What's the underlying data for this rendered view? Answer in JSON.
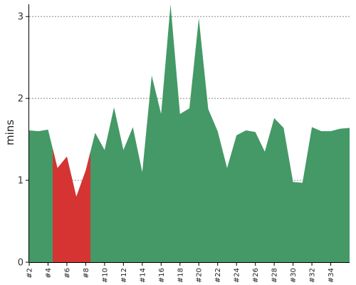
{
  "chart_data": {
    "type": "area",
    "ylabel": "mins",
    "xlabel": "",
    "ylim": [
      0,
      3.15
    ],
    "yticks": [
      0,
      1,
      2,
      3
    ],
    "grid": "horizontal-dashed",
    "legend": "none",
    "x_tick_labels": [
      "#2",
      "#4",
      "#6",
      "#8",
      "#10",
      "#12",
      "#14",
      "#16",
      "#18",
      "#20",
      "#22",
      "#24",
      "#26",
      "#28",
      "#30",
      "#32",
      "#34"
    ],
    "x": [
      1,
      2,
      3,
      4,
      5,
      6,
      7,
      8,
      9,
      10,
      11,
      12,
      13,
      14,
      15,
      16,
      17,
      18,
      19,
      20,
      21,
      22,
      23,
      24,
      25,
      26,
      27,
      28,
      29,
      30,
      31,
      32,
      33,
      34,
      35
    ],
    "values": [
      1.61,
      1.6,
      1.62,
      1.15,
      1.29,
      0.8,
      1.12,
      1.58,
      1.37,
      1.89,
      1.37,
      1.65,
      1.1,
      2.28,
      1.81,
      3.15,
      1.81,
      1.88,
      2.98,
      1.87,
      1.6,
      1.15,
      1.55,
      1.61,
      1.59,
      1.35,
      1.76,
      1.64,
      0.98,
      0.97,
      1.65,
      1.6,
      1.6,
      1.63,
      1.64
    ],
    "highlight_range": [
      3.5,
      7.5
    ],
    "colors": {
      "series": "#449966",
      "highlight": "#d63333",
      "grid": "#888888",
      "axis": "#000000"
    }
  }
}
